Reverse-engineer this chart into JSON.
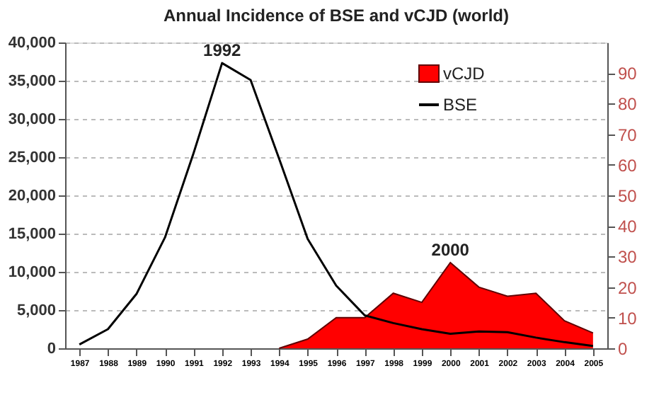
{
  "chart_data": {
    "type": "line",
    "title": "Annual Incidence of BSE and vCJD (world)",
    "categories": [
      "1987",
      "1988",
      "1989",
      "1990",
      "1991",
      "1992",
      "1993",
      "1994",
      "1995",
      "1996",
      "1997",
      "1998",
      "1999",
      "2000",
      "2001",
      "2002",
      "2003",
      "2004",
      "2005"
    ],
    "series": [
      {
        "name": "vCJD",
        "type": "area",
        "axis": "y2",
        "color": "#ff0000",
        "values": [
          null,
          null,
          null,
          null,
          null,
          null,
          null,
          0,
          3,
          10,
          10,
          18,
          15,
          28,
          20,
          17,
          18,
          9,
          5
        ]
      },
      {
        "name": "BSE",
        "color": "#000000",
        "values": [
          500,
          2500,
          7100,
          14500,
          25500,
          37300,
          35100,
          24800,
          14300,
          8200,
          4300,
          3300,
          2500,
          1900,
          2200,
          2100,
          1400,
          800,
          300
        ]
      }
    ],
    "ylim": [
      0,
      40000
    ],
    "yticks": [
      0,
      {
        "value": 5000,
        "label": "5,000"
      },
      {
        "value": 10000,
        "label": "10,000"
      },
      {
        "value": 15000,
        "label": "15,000"
      },
      {
        "value": 20000,
        "label": "20,000"
      },
      {
        "value": 25000,
        "label": "25,000"
      },
      {
        "value": 30000,
        "label": "30,000"
      },
      {
        "value": 35000,
        "label": "35,000"
      },
      {
        "value": 40000,
        "label": "40,000"
      }
    ],
    "y2lim": [
      0,
      100
    ],
    "y2ticks": [
      0,
      10,
      20,
      30,
      40,
      50,
      60,
      70,
      80,
      90
    ],
    "annotations": [
      {
        "text": "1992",
        "x": "1992",
        "y": 37300
      },
      {
        "text": "2000",
        "x": "2000",
        "y": 11200
      }
    ],
    "grid": "y",
    "legend": "top right",
    "marker": "none",
    "line_style": "solid"
  }
}
